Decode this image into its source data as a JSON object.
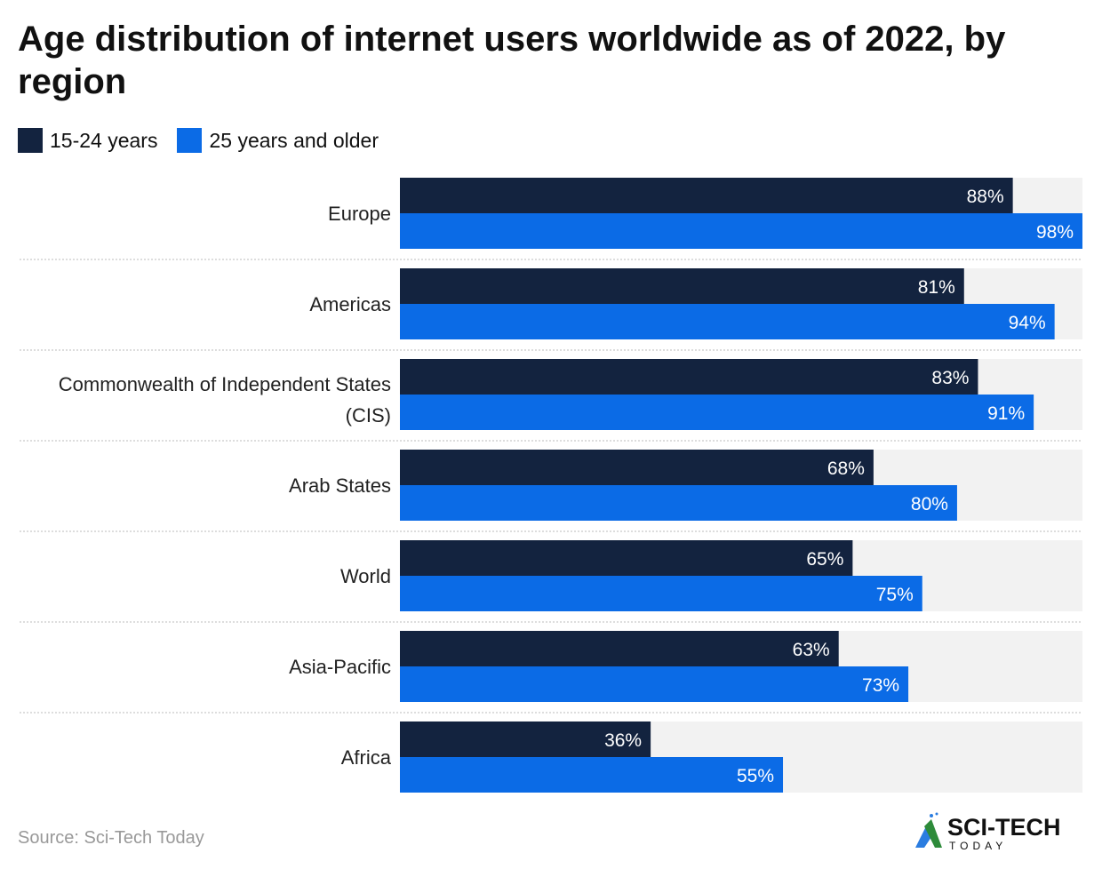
{
  "chart_data": {
    "type": "bar",
    "orientation": "horizontal",
    "title": "Age distribution of internet users worldwide as of 2022, by region",
    "categories": [
      "Europe",
      "Americas",
      "Commonwealth of Independent States (CIS)",
      "Arab States",
      "World",
      "Asia-Pacific",
      "Africa"
    ],
    "series": [
      {
        "name": "15-24 years",
        "color": "#13233f",
        "values": [
          88,
          81,
          83,
          68,
          65,
          63,
          36
        ]
      },
      {
        "name": "25 years and older",
        "color": "#0b6be6",
        "values": [
          98,
          94,
          91,
          80,
          75,
          73,
          55
        ]
      }
    ],
    "value_suffix": "%",
    "xlim": [
      0,
      98
    ],
    "grid": false,
    "legend": "top-left",
    "track_color": "#f2f2f2"
  },
  "source": "Source: Sci-Tech Today",
  "logo": {
    "text": "SCI-TECH",
    "subtext": "TODAY"
  }
}
